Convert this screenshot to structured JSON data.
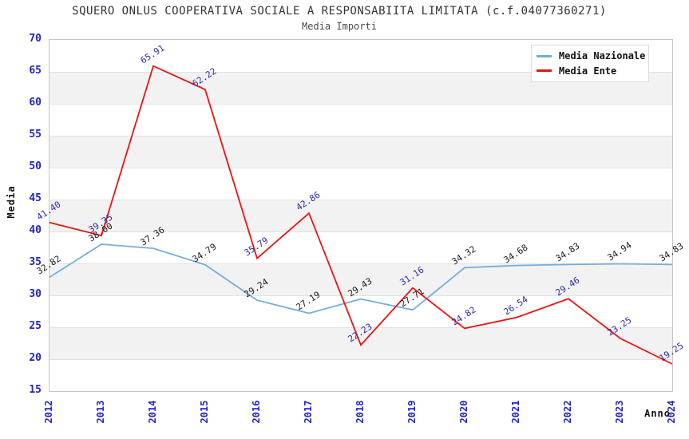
{
  "chart_data": {
    "type": "line",
    "title": "SQUERO ONLUS COOPERATIVA SOCIALE A RESPONSABIITA LIMITATA (c.f.04077360271)",
    "subtitle": "Media Importi",
    "xlabel": "Anno",
    "ylabel": "Media",
    "categories": [
      "2012",
      "2013",
      "2014",
      "2015",
      "2016",
      "2017",
      "2018",
      "2019",
      "2020",
      "2021",
      "2022",
      "2023",
      "2024"
    ],
    "series": [
      {
        "name": "Media Nazionale",
        "color": "#74addc",
        "label_color": "#1a1a1a",
        "values": [
          32.82,
          38.0,
          37.36,
          34.79,
          29.24,
          27.19,
          29.43,
          27.71,
          34.32,
          34.68,
          34.83,
          34.94,
          34.83
        ]
      },
      {
        "name": "Media Ente",
        "color": "#ee1111",
        "label_color": "#2a2aa8",
        "values": [
          41.4,
          39.35,
          65.91,
          62.22,
          35.79,
          42.86,
          22.23,
          31.16,
          24.82,
          26.54,
          29.46,
          23.25,
          19.25
        ]
      }
    ],
    "ylim": [
      15,
      70
    ],
    "yticks": [
      70,
      65,
      60,
      55,
      50,
      45,
      40,
      35,
      30,
      25,
      20,
      15
    ],
    "tick_color": "#2222cc",
    "grid": "horizontal-bands",
    "legend_position": "top-right",
    "band_color": "#f2f2f2"
  }
}
